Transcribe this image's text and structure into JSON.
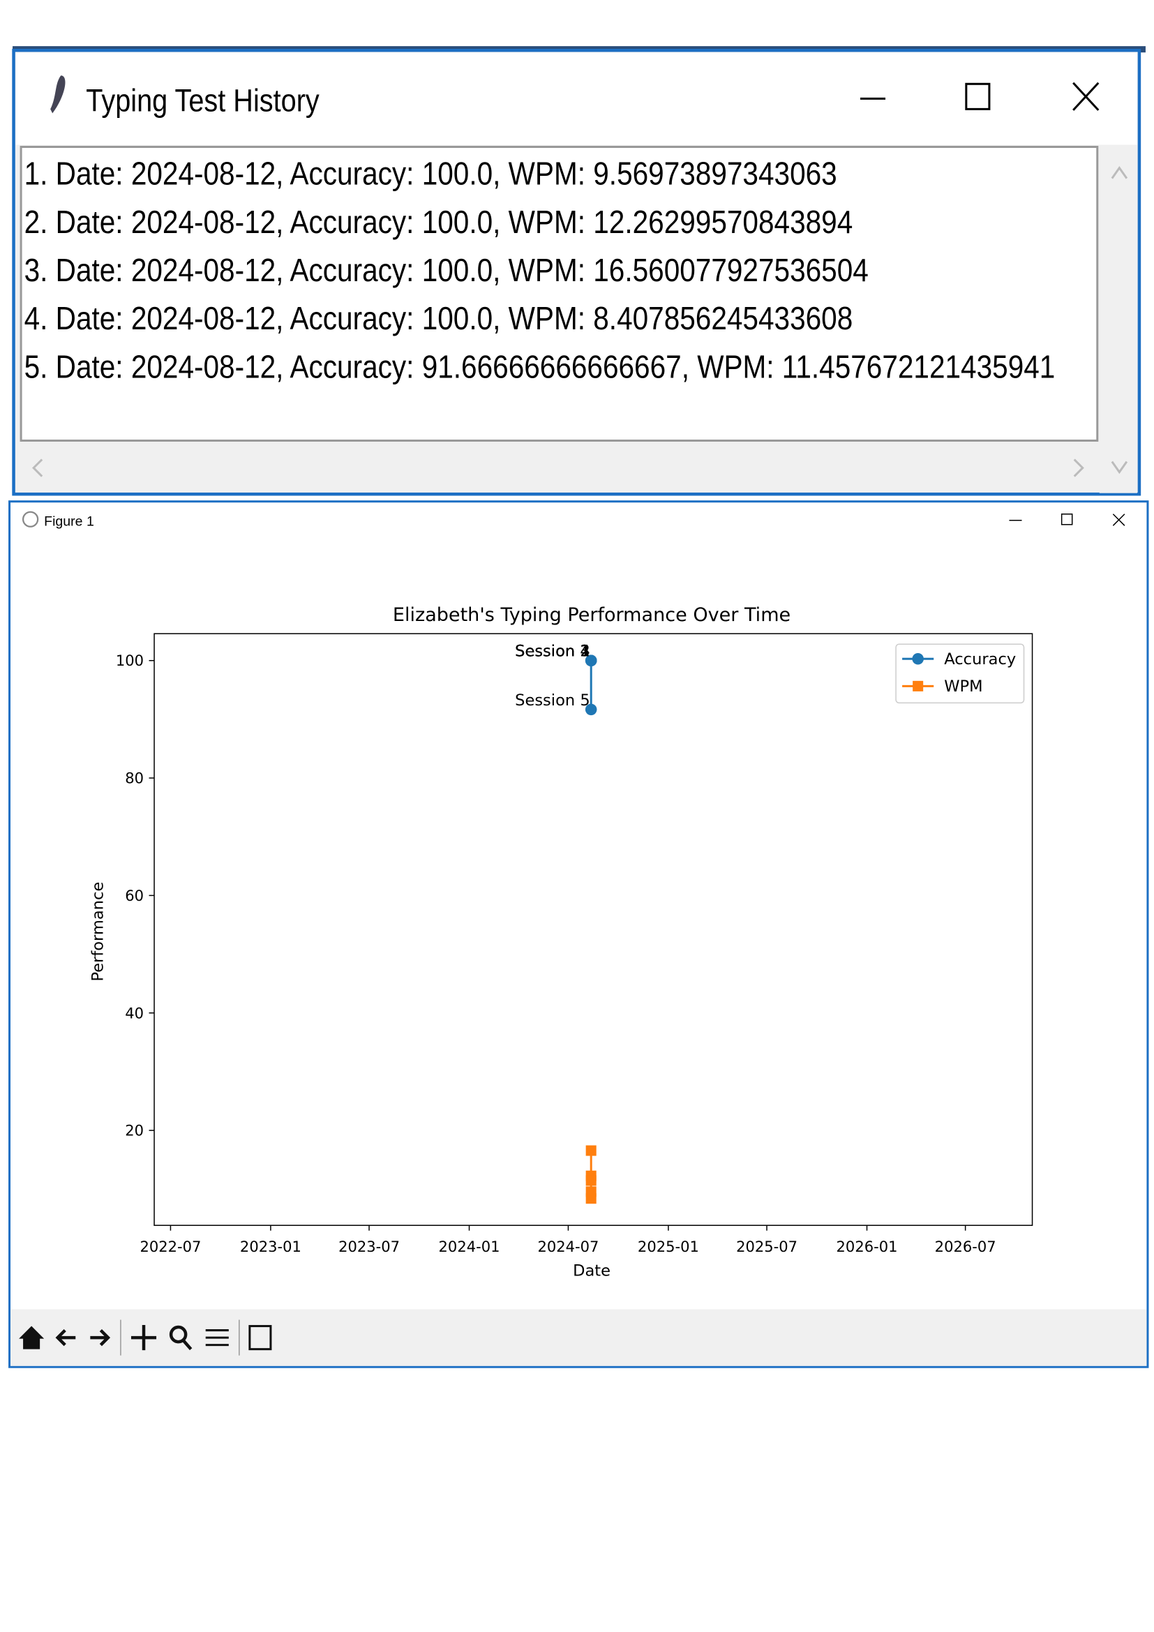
{
  "history_window": {
    "title": "Typing Test History",
    "entries": [
      "1. Date: 2024-08-12, Accuracy: 100.0, WPM: 9.56973897343063",
      "2. Date: 2024-08-12, Accuracy: 100.0, WPM: 12.26299570843894",
      "3. Date: 2024-08-12, Accuracy: 100.0, WPM: 16.560077927536504",
      "4. Date: 2024-08-12, Accuracy: 100.0, WPM: 8.407856245433608",
      "5. Date: 2024-08-12, Accuracy: 91.66666666666667, WPM: 11.457672121435941"
    ]
  },
  "figure_window": {
    "title": "Figure 1"
  },
  "chart_data": {
    "type": "line",
    "title": "Elizabeth's Typing Performance Over Time",
    "x_label": "Date",
    "y_label": "Performance",
    "x": [
      "2024-08-12",
      "2024-08-12",
      "2024-08-12",
      "2024-08-12",
      "2024-08-12"
    ],
    "series": [
      {
        "name": "Accuracy",
        "color": "#1f77b4",
        "marker": "circle",
        "values": [
          100.0,
          100.0,
          100.0,
          100.0,
          91.66666666666667
        ]
      },
      {
        "name": "WPM",
        "color": "#ff7f0e",
        "marker": "square",
        "values": [
          9.56973897343063,
          12.26299570843894,
          16.560077927536504,
          8.407856245433608,
          11.457672121435941
        ]
      }
    ],
    "annotations": [
      "Session 1",
      "Session 2",
      "Session 3",
      "Session 4",
      "Session 5"
    ],
    "xlim": [
      "2022-06",
      "2026-11"
    ],
    "xticks": [
      "2022-07",
      "2023-01",
      "2023-07",
      "2024-01",
      "2024-07",
      "2025-01",
      "2025-07",
      "2026-01",
      "2026-07"
    ],
    "ylim": [
      3.83,
      104.58
    ],
    "yticks": [
      20,
      40,
      60,
      80,
      100
    ],
    "grid": false,
    "legend": "upper right"
  }
}
